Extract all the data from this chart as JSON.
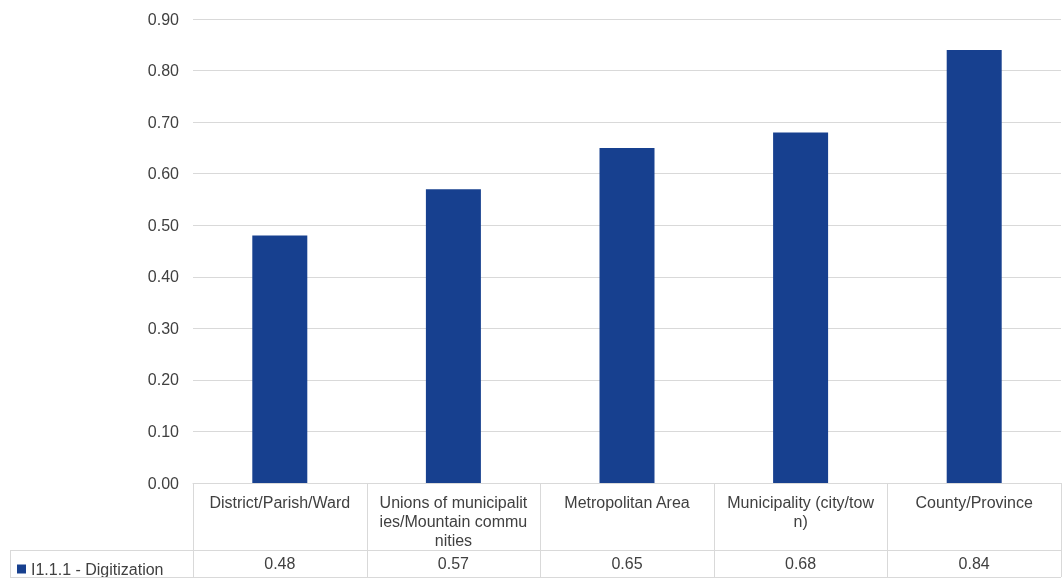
{
  "chart_data": {
    "type": "bar",
    "categories": [
      "District/Parish/Ward",
      "Unions of municipalities/Mountain communities",
      "Metropolitan Area",
      "Municipality (city/town)",
      "County/Province"
    ],
    "series": [
      {
        "name": "I1.1.1 - Digitization",
        "color": "#17408f",
        "values": [
          0.48,
          0.57,
          0.65,
          0.68,
          0.84
        ]
      }
    ],
    "ylim": [
      0,
      0.9
    ],
    "yticks": [
      {
        "value": 0,
        "label": "0.00"
      },
      {
        "value": 0.1,
        "label": "0.10"
      },
      {
        "value": 0.2,
        "label": "0.20"
      },
      {
        "value": 0.3,
        "label": "0.30"
      },
      {
        "value": 0.4,
        "label": "0.40"
      },
      {
        "value": 0.5,
        "label": "0.50"
      },
      {
        "value": 0.6,
        "label": "0.60"
      },
      {
        "value": 0.7,
        "label": "0.70"
      },
      {
        "value": 0.8,
        "label": "0.80"
      },
      {
        "value": 0.9,
        "label": "0.90"
      }
    ],
    "grid": "y",
    "data_labels": true,
    "legend": "bottom left"
  }
}
